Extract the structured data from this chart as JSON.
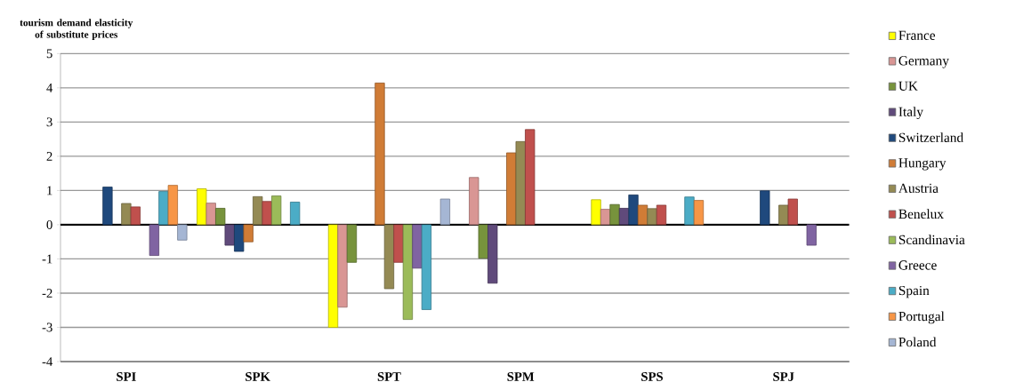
{
  "chart_data": {
    "type": "bar",
    "ylabel": "tourism demand elasticity of substitute prices",
    "categories": [
      "SPI",
      "SPK",
      "SPT",
      "SPM",
      "SPS",
      "SPJ"
    ],
    "series": [
      {
        "name": "France",
        "color": "#ffff00",
        "values": [
          null,
          1.05,
          -3.0,
          null,
          0.73,
          null
        ]
      },
      {
        "name": "Germany",
        "color": "#d99694",
        "values": [
          null,
          0.63,
          -2.41,
          1.38,
          0.45,
          null
        ]
      },
      {
        "name": "UK",
        "color": "#77933c",
        "values": [
          null,
          0.48,
          -1.1,
          -0.98,
          0.59,
          null
        ]
      },
      {
        "name": "Italy",
        "color": "#604a7b",
        "values": [
          null,
          -0.6,
          null,
          -1.71,
          0.48,
          null
        ]
      },
      {
        "name": "Switzerland",
        "color": "#1f497d",
        "values": [
          1.1,
          -0.78,
          null,
          null,
          0.87,
          0.99
        ]
      },
      {
        "name": "Hungary",
        "color": "#d07c36",
        "values": [
          null,
          -0.5,
          4.14,
          2.1,
          0.57,
          null
        ]
      },
      {
        "name": "Austria",
        "color": "#948a54",
        "values": [
          0.62,
          0.82,
          -1.87,
          2.43,
          0.47,
          0.57
        ]
      },
      {
        "name": "Benelux",
        "color": "#c0504d",
        "values": [
          0.52,
          0.68,
          -1.1,
          2.78,
          0.57,
          0.75
        ]
      },
      {
        "name": "Scandinavia",
        "color": "#9bbb59",
        "values": [
          null,
          0.84,
          -2.77,
          null,
          null,
          null
        ]
      },
      {
        "name": "Greece",
        "color": "#8064a2",
        "values": [
          -0.9,
          null,
          -1.27,
          null,
          null,
          -0.6
        ]
      },
      {
        "name": "Spain",
        "color": "#4bacc6",
        "values": [
          0.97,
          0.66,
          -2.48,
          null,
          0.81,
          null
        ]
      },
      {
        "name": "Portugal",
        "color": "#f79646",
        "values": [
          1.15,
          null,
          null,
          null,
          0.71,
          null
        ]
      },
      {
        "name": "Poland",
        "color": "#a5b6d4",
        "values": [
          -0.45,
          null,
          0.75,
          null,
          null,
          null
        ]
      }
    ],
    "ylim": [
      -4,
      5
    ],
    "yticks": [
      -4,
      -3,
      -2,
      -1,
      0,
      1,
      2,
      3,
      4,
      5
    ],
    "grid": "y",
    "legend": "right"
  }
}
